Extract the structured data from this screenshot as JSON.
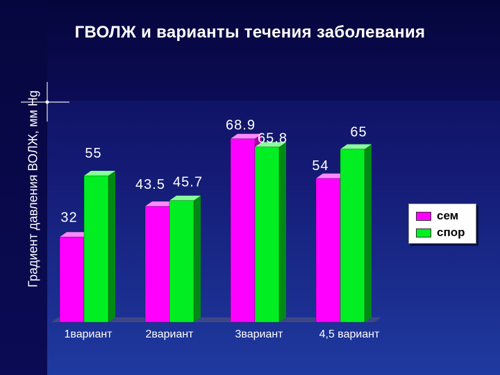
{
  "chart_data": {
    "type": "bar",
    "title": "ГВОЛЖ и варианты течения заболевания",
    "ylabel": "Градиент давления ВОЛЖ, мм Hg",
    "xlabel": "",
    "categories": [
      "1вариант",
      "2вариант",
      "3вариант",
      "4,5 вариант"
    ],
    "series": [
      {
        "name": "сем",
        "color": "#ff00ff",
        "values": [
          32,
          43.5,
          68.9,
          54
        ],
        "labels": [
          "32",
          "43.5",
          "68.9",
          "54"
        ]
      },
      {
        "name": "спор",
        "color": "#00ee22",
        "values": [
          55,
          45.7,
          65.8,
          65
        ],
        "labels": [
          "55",
          "45.7",
          "65.8",
          "65"
        ]
      }
    ],
    "ylim": [
      0,
      85
    ],
    "grid": false,
    "legend": "right",
    "style": "3d-bars"
  }
}
